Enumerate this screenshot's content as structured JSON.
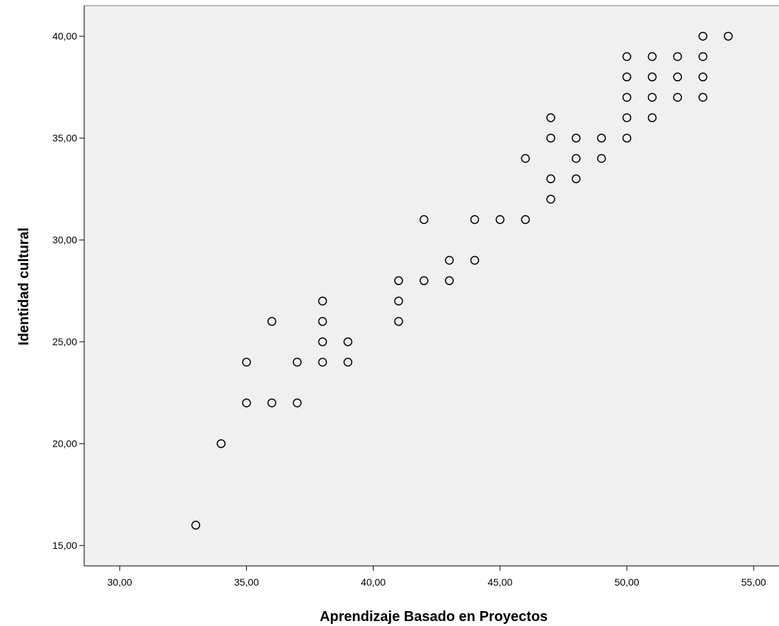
{
  "chart_data": {
    "type": "scatter",
    "xlabel": "Aprendizaje Basado en Proyectos",
    "ylabel": "Identidad cultural",
    "xlim": [
      28.6,
      56.0
    ],
    "ylim": [
      14.0,
      41.5
    ],
    "x_ticks": [
      30,
      35,
      40,
      45,
      50,
      55
    ],
    "y_ticks": [
      15,
      20,
      25,
      30,
      35,
      40
    ],
    "x_tick_labels": [
      "30,00",
      "35,00",
      "40,00",
      "45,00",
      "50,00",
      "55,00"
    ],
    "y_tick_labels": [
      "15,00",
      "20,00",
      "25,00",
      "30,00",
      "35,00",
      "40,00"
    ],
    "grid": false,
    "legend": "none",
    "marker": "open-circle",
    "colors": {
      "plot_background": "#f0f0f0",
      "marker_stroke": "#000000",
      "axis": "#000000"
    },
    "points": [
      {
        "x": 33,
        "y": 16
      },
      {
        "x": 34,
        "y": 20
      },
      {
        "x": 35,
        "y": 22
      },
      {
        "x": 35,
        "y": 24
      },
      {
        "x": 36,
        "y": 22
      },
      {
        "x": 36,
        "y": 26
      },
      {
        "x": 37,
        "y": 22
      },
      {
        "x": 37,
        "y": 24
      },
      {
        "x": 38,
        "y": 24
      },
      {
        "x": 38,
        "y": 25
      },
      {
        "x": 38,
        "y": 26
      },
      {
        "x": 38,
        "y": 27
      },
      {
        "x": 39,
        "y": 24
      },
      {
        "x": 39,
        "y": 25
      },
      {
        "x": 41,
        "y": 26
      },
      {
        "x": 41,
        "y": 27
      },
      {
        "x": 41,
        "y": 28
      },
      {
        "x": 42,
        "y": 28
      },
      {
        "x": 42,
        "y": 31
      },
      {
        "x": 43,
        "y": 28
      },
      {
        "x": 43,
        "y": 29
      },
      {
        "x": 44,
        "y": 29
      },
      {
        "x": 44,
        "y": 31
      },
      {
        "x": 45,
        "y": 31
      },
      {
        "x": 46,
        "y": 31
      },
      {
        "x": 46,
        "y": 34
      },
      {
        "x": 47,
        "y": 32
      },
      {
        "x": 47,
        "y": 33
      },
      {
        "x": 47,
        "y": 35
      },
      {
        "x": 47,
        "y": 36
      },
      {
        "x": 48,
        "y": 33
      },
      {
        "x": 48,
        "y": 34
      },
      {
        "x": 48,
        "y": 35
      },
      {
        "x": 49,
        "y": 34
      },
      {
        "x": 49,
        "y": 35
      },
      {
        "x": 50,
        "y": 35
      },
      {
        "x": 50,
        "y": 36
      },
      {
        "x": 50,
        "y": 37
      },
      {
        "x": 50,
        "y": 38
      },
      {
        "x": 50,
        "y": 39
      },
      {
        "x": 51,
        "y": 36
      },
      {
        "x": 51,
        "y": 37
      },
      {
        "x": 51,
        "y": 38
      },
      {
        "x": 51,
        "y": 39
      },
      {
        "x": 52,
        "y": 37
      },
      {
        "x": 52,
        "y": 38
      },
      {
        "x": 52,
        "y": 39
      },
      {
        "x": 53,
        "y": 37
      },
      {
        "x": 53,
        "y": 38
      },
      {
        "x": 53,
        "y": 39
      },
      {
        "x": 53,
        "y": 40
      },
      {
        "x": 54,
        "y": 40
      }
    ]
  }
}
